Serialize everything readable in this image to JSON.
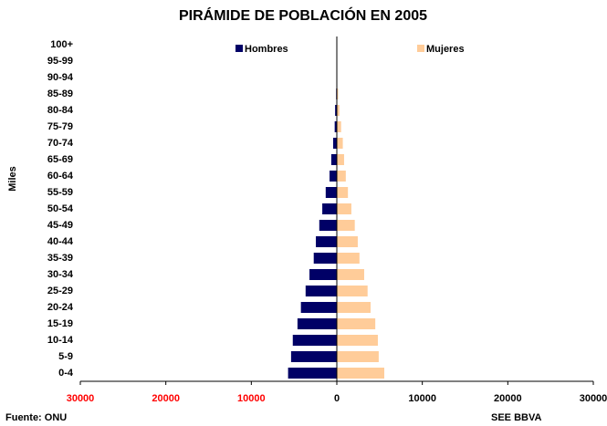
{
  "chart_data": {
    "type": "pyramid",
    "title": "PIRÁMIDE DE POBLACIÓN EN 2005",
    "y_label": "Miles",
    "categories": [
      "0-4",
      "5-9",
      "10-14",
      "15-19",
      "20-24",
      "25-29",
      "30-34",
      "35-39",
      "40-44",
      "45-49",
      "50-54",
      "55-59",
      "60-64",
      "65-69",
      "70-74",
      "75-79",
      "80-84",
      "85-89",
      "90-94",
      "95-99",
      "100+"
    ],
    "series": [
      {
        "name": "Hombres",
        "color": "#000066",
        "values": [
          -5700,
          -5350,
          -5150,
          -4600,
          -4200,
          -3650,
          -3200,
          -2700,
          -2450,
          -2050,
          -1700,
          -1300,
          -850,
          -650,
          -430,
          -250,
          -200,
          -80,
          -30,
          -10,
          0
        ]
      },
      {
        "name": "Mujeres",
        "color": "#ffcc99",
        "values": [
          5550,
          4900,
          4800,
          4500,
          3950,
          3600,
          3200,
          2650,
          2450,
          2100,
          1700,
          1300,
          1050,
          850,
          700,
          500,
          300,
          150,
          50,
          15,
          0
        ]
      }
    ],
    "xlim": [
      -30000,
      30000
    ],
    "xticks": [
      {
        "value": -30000,
        "label": "30000"
      },
      {
        "value": -20000,
        "label": "20000"
      },
      {
        "value": -10000,
        "label": "10000"
      },
      0,
      10000,
      20000,
      30000
    ],
    "negative_tick_color": "#ff0000",
    "source": "Fuente: ONU",
    "credit": "SEE BBVA"
  }
}
